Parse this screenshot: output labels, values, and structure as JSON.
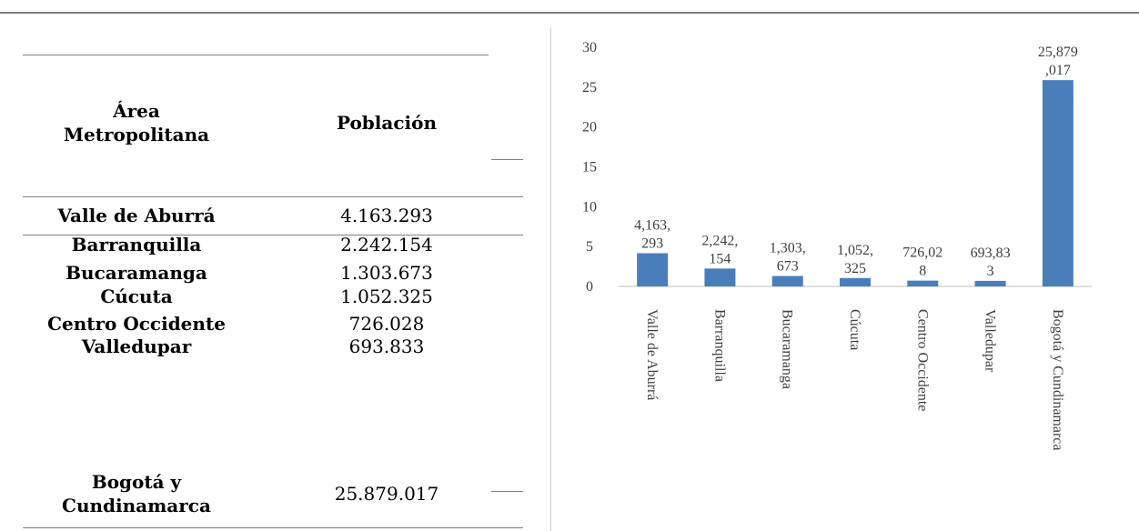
{
  "table": {
    "header": [
      "Área Metropolitana",
      "Población"
    ],
    "rows": [
      [
        "Valle de Aburrá",
        "4.163.293"
      ],
      [
        "Barranquilla",
        "2.242.154"
      ],
      [
        "Bucaramanga",
        "1.303.673"
      ],
      [
        "Cúcuta",
        "1.052.325"
      ],
      [
        "Centro Occidente",
        "726.028"
      ],
      [
        "Valledupar",
        "693.833"
      ],
      [
        "Bogotá y Cundinamarca",
        "25.879.017"
      ]
    ]
  },
  "chart_data": {
    "type": "bar",
    "categories": [
      "Valle de Aburrá",
      "Barranquilla",
      "Bucaramanga",
      "Cúcuta",
      "Centro Occidente",
      "Valledupar",
      "Bogotá y Cundinamarca"
    ],
    "values": [
      4.163293,
      2.242154,
      1.303673,
      1.052325,
      0.726028,
      0.693833,
      25.879017
    ],
    "value_labels": [
      [
        "4,163,",
        "293"
      ],
      [
        "2,242,",
        "154"
      ],
      [
        "1,303,",
        "673"
      ],
      [
        "1,052,",
        "325"
      ],
      [
        "726,02",
        "8"
      ],
      [
        "693,83",
        "3"
      ],
      [
        "25,879",
        ",017"
      ]
    ],
    "color": "#4a7ebb",
    "ylim": [
      0,
      30
    ],
    "yticks": [
      0,
      5,
      10,
      15,
      20,
      25,
      30
    ]
  }
}
